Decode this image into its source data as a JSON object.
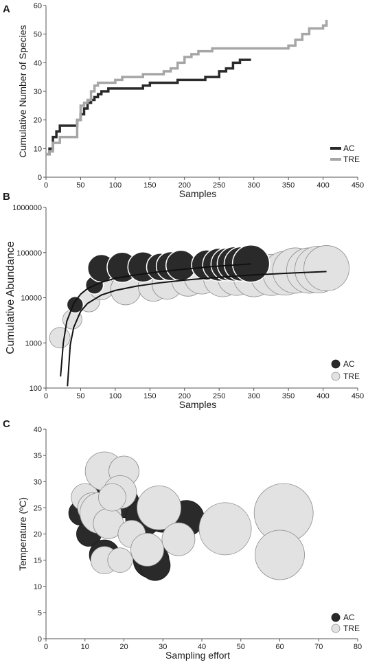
{
  "colors": {
    "ac": "#2a2a2a",
    "tre": "#a6a6a6",
    "tre_fill": "#e2e2e2",
    "axis": "#555555"
  },
  "chart_data": [
    {
      "panel": "A",
      "type": "line",
      "xlabel": "Samples",
      "ylabel": "Cumulative Number of Species",
      "xlim": [
        0,
        450
      ],
      "ylim": [
        0,
        60
      ],
      "xticks": [
        0,
        50,
        100,
        150,
        200,
        250,
        300,
        350,
        400,
        450
      ],
      "yticks": [
        0,
        10,
        20,
        30,
        40,
        50,
        60
      ],
      "legend_position": "bottom-right",
      "series": [
        {
          "name": "AC",
          "color": "#2a2a2a",
          "x": [
            0,
            5,
            10,
            15,
            20,
            30,
            40,
            45,
            50,
            55,
            60,
            65,
            70,
            75,
            80,
            85,
            90,
            100,
            110,
            120,
            130,
            140,
            150,
            160,
            170,
            180,
            190,
            200,
            210,
            220,
            230,
            240,
            250,
            260,
            270,
            280,
            296
          ],
          "y": [
            8,
            10,
            14,
            16,
            18,
            18,
            18,
            20,
            22,
            24,
            26,
            27,
            28,
            29,
            30,
            30,
            31,
            31,
            31,
            31,
            31,
            32,
            33,
            33,
            33,
            33,
            34,
            34,
            34,
            34,
            35,
            35,
            37,
            38,
            40,
            41,
            41
          ]
        },
        {
          "name": "TRE",
          "color": "#a6a6a6",
          "x": [
            0,
            5,
            10,
            20,
            30,
            40,
            45,
            50,
            55,
            60,
            65,
            70,
            75,
            80,
            90,
            100,
            110,
            120,
            130,
            140,
            150,
            160,
            170,
            180,
            190,
            200,
            210,
            220,
            240,
            260,
            280,
            300,
            320,
            340,
            350,
            360,
            370,
            380,
            390,
            400,
            405
          ],
          "y": [
            8,
            9,
            12,
            14,
            14,
            14,
            20,
            25,
            26,
            27,
            30,
            32,
            33,
            33,
            33,
            34,
            35,
            35,
            35,
            36,
            36,
            36,
            37,
            38,
            40,
            42,
            43,
            44,
            45,
            45,
            45,
            45,
            45,
            45,
            46,
            48,
            50,
            52,
            52,
            53,
            55
          ]
        }
      ]
    },
    {
      "panel": "B",
      "type": "scatter",
      "xlabel": "Samples",
      "ylabel": "Cumulative Abundance",
      "xlim": [
        0,
        450
      ],
      "ylim": [
        100,
        1000000
      ],
      "yscale": "log",
      "xticks": [
        0,
        50,
        100,
        150,
        200,
        250,
        300,
        350,
        400,
        450
      ],
      "yticks": [
        100,
        1000,
        10000,
        100000,
        1000000
      ],
      "legend_position": "bottom-right",
      "series": [
        {
          "name": "AC",
          "color": "#2a2a2a",
          "x": [
            42,
            70,
            80,
            110,
            140,
            165,
            180,
            195,
            232,
            250,
            262,
            272,
            282,
            296
          ],
          "y": [
            7000,
            19000,
            45000,
            47000,
            48000,
            48000,
            50000,
            52000,
            53000,
            54000,
            55000,
            56000,
            56000,
            57000
          ],
          "r": [
            12,
            13,
            20,
            22,
            22,
            20,
            21,
            22,
            22,
            24,
            24,
            25,
            25,
            27
          ]
        },
        {
          "name": "TRE",
          "color": "#e2e2e2",
          "x": [
            20,
            38,
            62,
            80,
            115,
            155,
            175,
            205,
            225,
            255,
            275,
            300,
            325,
            345,
            360,
            380,
            393,
            405
          ],
          "y": [
            1300,
            3300,
            8500,
            17000,
            15000,
            18000,
            20000,
            25000,
            30000,
            28000,
            30000,
            30000,
            32000,
            35000,
            40000,
            40000,
            42000,
            45000
          ],
          "r": [
            15,
            14,
            16,
            18,
            22,
            22,
            22,
            24,
            26,
            28,
            28,
            30,
            30,
            32,
            33,
            33,
            34,
            33
          ]
        }
      ],
      "trend_lines": [
        {
          "name": "AC",
          "x": [
            21,
            25,
            30,
            40,
            50,
            60,
            80,
            100,
            130,
            160,
            200,
            240,
            296
          ],
          "y": [
            180,
            1000,
            3000,
            7500,
            12000,
            16000,
            22000,
            27000,
            32000,
            37000,
            43000,
            49000,
            56000
          ]
        },
        {
          "name": "TRE",
          "x": [
            31,
            35,
            40,
            50,
            60,
            80,
            100,
            130,
            160,
            200,
            250,
            300,
            350,
            405
          ],
          "y": [
            110,
            900,
            2200,
            5000,
            7500,
            11500,
            14500,
            18000,
            21000,
            24500,
            28500,
            32000,
            35000,
            38000
          ]
        }
      ]
    },
    {
      "panel": "C",
      "type": "scatter",
      "xlabel": "Sampling effort",
      "ylabel": "Temperature (ºC)",
      "xlim": [
        0,
        80
      ],
      "ylim": [
        0,
        40
      ],
      "xticks": [
        0,
        10,
        20,
        30,
        40,
        50,
        60,
        70,
        80
      ],
      "yticks": [
        0,
        5,
        10,
        15,
        20,
        25,
        30,
        35,
        40
      ],
      "legend_position": "bottom-right",
      "series": [
        {
          "name": "AC",
          "color": "#2a2a2a",
          "x": [
            9,
            12,
            11,
            15,
            20,
            25,
            27,
            28,
            30,
            34,
            36
          ],
          "y": [
            24,
            26,
            20,
            16,
            26,
            23,
            15,
            14,
            24,
            22,
            23
          ],
          "r": [
            18,
            20,
            18,
            22,
            22,
            26,
            26,
            22,
            28,
            26,
            26
          ]
        },
        {
          "name": "TRE",
          "color": "#e2e2e2",
          "x": [
            10,
            12,
            14,
            15,
            16,
            20,
            19,
            17,
            22,
            26,
            29,
            34,
            15,
            19,
            46,
            61,
            60
          ],
          "y": [
            27,
            25,
            24,
            32,
            22,
            32,
            28,
            27,
            20,
            17,
            25,
            19,
            15,
            15,
            21,
            24,
            16
          ],
          "r": [
            20,
            22,
            30,
            28,
            22,
            22,
            24,
            20,
            20,
            24,
            32,
            24,
            20,
            18,
            38,
            43,
            36
          ]
        }
      ]
    }
  ]
}
